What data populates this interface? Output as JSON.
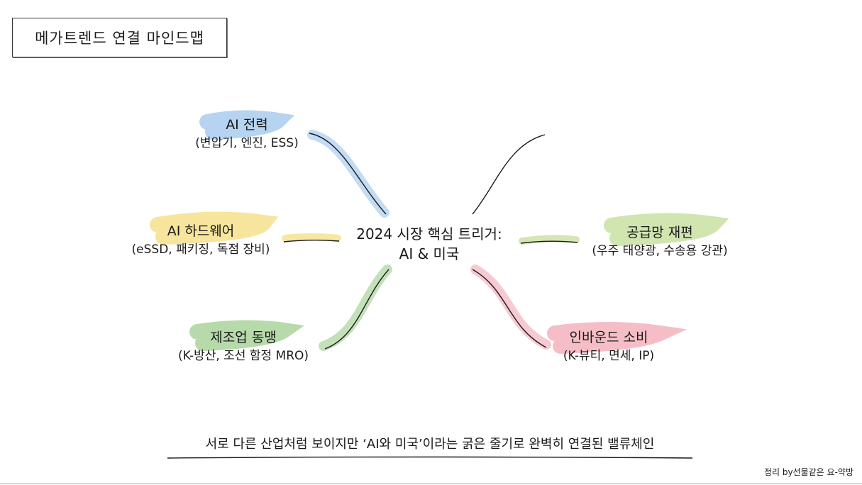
{
  "title": "메가트렌드 연결 마인드맵",
  "center": {
    "line1": "2024 시장 핵심 트리거:",
    "line2": "AI & 미국"
  },
  "nodes": {
    "ai_power": {
      "label": "AI 전력",
      "detail": "(변압기, 엔진, ESS)"
    },
    "ai_hardware": {
      "label": "AI 하드웨어",
      "detail": "(eSSD, 패키징, 독점 장비)"
    },
    "manufacturing": {
      "label": "제조업 동맹",
      "detail": "(K-방산, 조선 함정 MRO)"
    },
    "supply_chain": {
      "label": "공급망 재편",
      "detail": "(우주 태양광, 수송용 강관)"
    },
    "inbound": {
      "label": "인바운드 소비",
      "detail": "(K-뷰티, 면세, IP)"
    }
  },
  "summary": "서로 다른 산업처럼 보이지만 ‘AI와 미국’이라는 굵은 줄기로 완벽히 연결된 밸류체인",
  "credit": "정리 by선물같은 요-약방",
  "colors": {
    "blue": "#a9cdef",
    "yellow": "#f6e08c",
    "green_light": "#c9e0a2",
    "green": "#a9d49a",
    "pink": "#f3b3bd",
    "ink": "#1a1a1a"
  }
}
